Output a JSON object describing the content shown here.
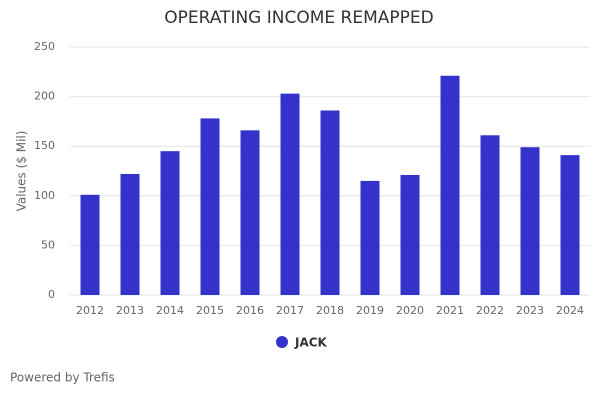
{
  "chart_data": {
    "type": "bar",
    "title": "OPERATING INCOME REMAPPED",
    "y_label": "Values ($ Mil)",
    "categories": [
      "2012",
      "2013",
      "2014",
      "2015",
      "2016",
      "2017",
      "2018",
      "2019",
      "2020",
      "2021",
      "2022",
      "2023",
      "2024"
    ],
    "series": [
      {
        "name": "JACK",
        "color": "#3333cc",
        "values": [
          101,
          122,
          145,
          178,
          166,
          203,
          186,
          115,
          121,
          221,
          161,
          149,
          141
        ]
      }
    ],
    "ylim": [
      0,
      250
    ],
    "yticks": [
      0,
      50,
      100,
      150,
      200,
      250
    ],
    "grid": true,
    "legend": "bottom",
    "source": "Powered by Trefis"
  }
}
